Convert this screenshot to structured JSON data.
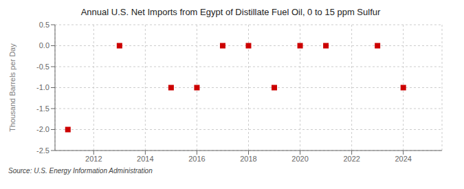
{
  "chart_data": {
    "type": "scatter",
    "title": "Annual U.S. Net Imports from Egypt of Distillate Fuel Oil, 0 to 15 ppm Sulfur",
    "ylabel": "Thousand Barrels per Day",
    "annotations": [
      "Source: U.S. Energy Information Administration"
    ],
    "x": [
      2011,
      2013,
      2015,
      2016,
      2017,
      2018,
      2019,
      2020,
      2021,
      2023,
      2024
    ],
    "values": [
      -2.0,
      0.0,
      -1.0,
      -1.0,
      0.0,
      0.0,
      -1.0,
      0.0,
      0.0,
      0.0,
      -1.0
    ],
    "color": "#cc0000",
    "marker": "square",
    "xlim": [
      2010.5,
      2025.5
    ],
    "xticks": [
      2012,
      2014,
      2016,
      2018,
      2020,
      2022,
      2024
    ],
    "ylim": [
      -2.5,
      0.5
    ],
    "yticks": [
      0.5,
      {
        "value": 0,
        "label": "0.0"
      },
      -0.5,
      {
        "value": -1,
        "label": "-1.0"
      },
      -1.5,
      {
        "value": -2,
        "label": "-2.0"
      },
      -2.5
    ],
    "grid": true
  }
}
